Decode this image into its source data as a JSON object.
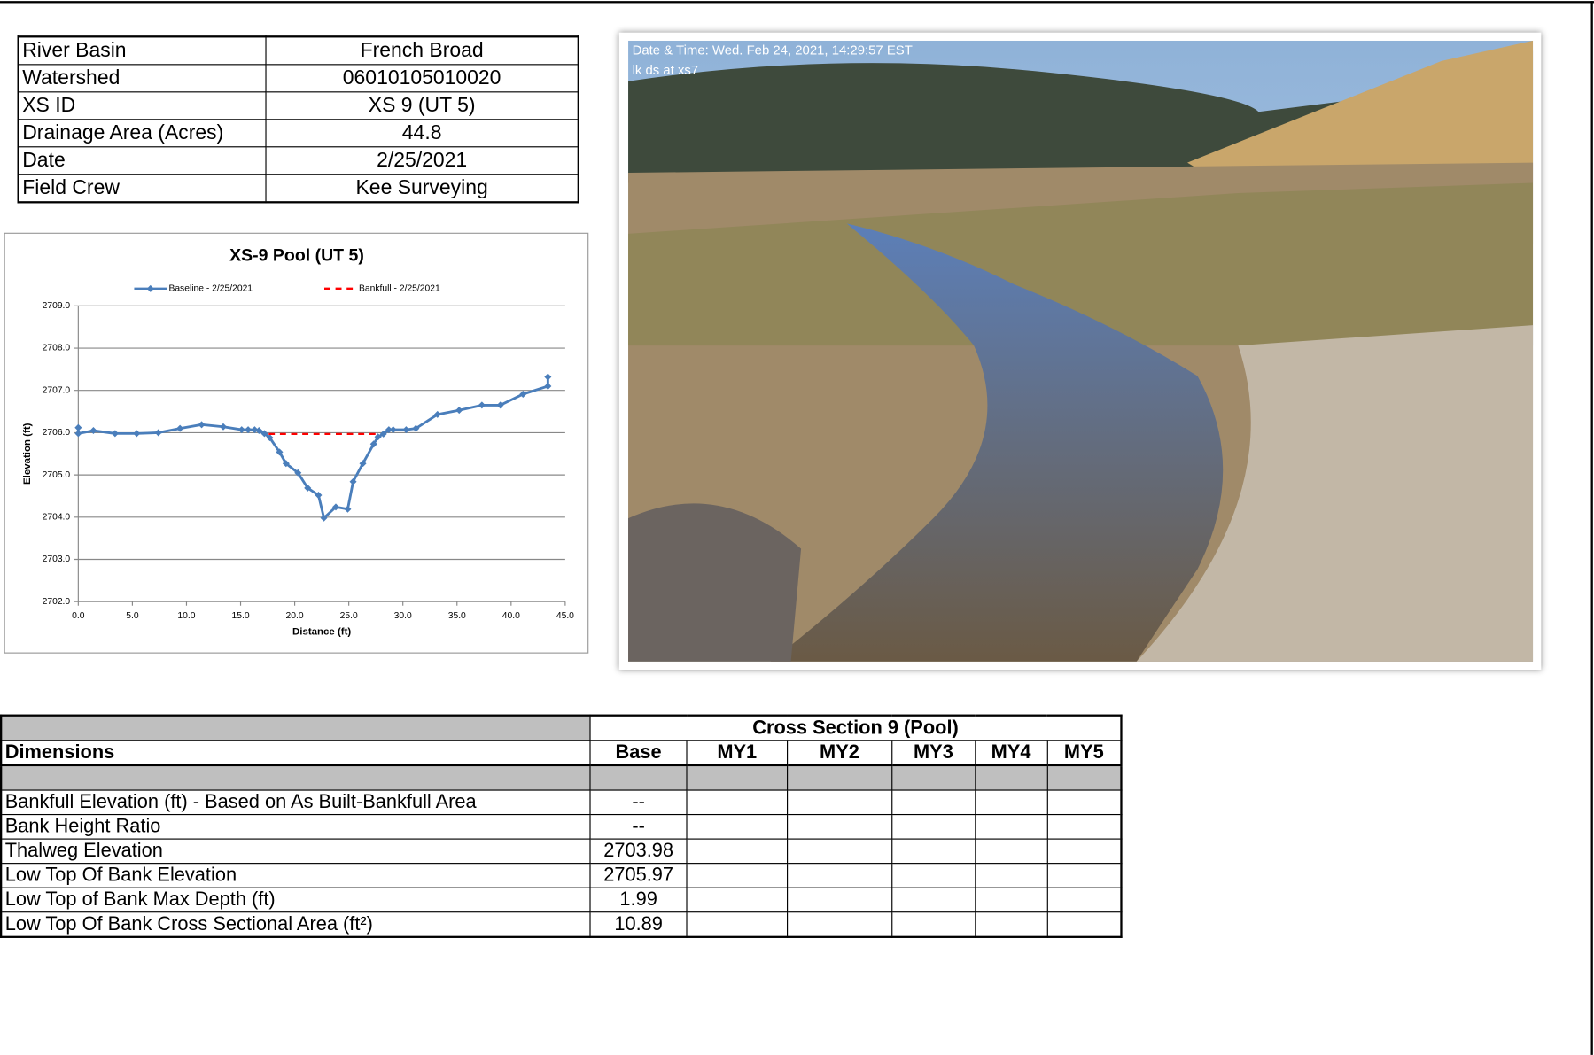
{
  "info_table": {
    "rows": [
      [
        "River Basin",
        "French Broad"
      ],
      [
        "Watershed",
        "06010105010020"
      ],
      [
        "XS ID",
        "XS 9 (UT 5)"
      ],
      [
        "Drainage Area (Acres)",
        44.8
      ],
      [
        "Date",
        "2/25/2021"
      ],
      [
        "Field Crew",
        "Kee Surveying"
      ]
    ]
  },
  "chart_data": {
    "type": "line",
    "title": "XS-9 Pool (UT 5)",
    "x_label": "Distance (ft)",
    "y_label": "Elevation (ft)",
    "series": [
      {
        "name": "Baseline - 2/25/2021",
        "color": "#4a7ebb",
        "marker": "diamond",
        "x": [
          0,
          0,
          1.4,
          3.4,
          5.4,
          7.4,
          9.4,
          11.4,
          13.4,
          15.1,
          15.7,
          16.3,
          16.7,
          17.2,
          17.7,
          18.6,
          19.2,
          20.3,
          21.2,
          22.2,
          22.7,
          23.8,
          24.9,
          25.4,
          26.3,
          27.3,
          27.7,
          28.2,
          28.7,
          29.1,
          30.3,
          31.2,
          33.2,
          35.2,
          37.3,
          39.0,
          41.1,
          43.4,
          43.4
        ],
        "values": [
          2706.12,
          2705.98,
          2706.05,
          2705.98,
          2705.98,
          2706.0,
          2706.1,
          2706.19,
          2706.14,
          2706.07,
          2706.07,
          2706.07,
          2706.05,
          2705.98,
          2705.88,
          2705.54,
          2705.27,
          2705.05,
          2704.69,
          2704.52,
          2703.98,
          2704.24,
          2704.19,
          2704.84,
          2705.27,
          2705.73,
          2705.9,
          2705.97,
          2706.07,
          2706.07,
          2706.07,
          2706.1,
          2706.43,
          2706.53,
          2706.65,
          2706.65,
          2706.91,
          2707.1,
          2707.32
        ]
      },
      {
        "name": "Bankfull - 2/25/2021",
        "color": "#ff0000",
        "dash": true,
        "x": [
          17.6,
          27.9
        ],
        "values": [
          2705.97,
          2705.97
        ]
      }
    ],
    "xlim": [
      0,
      45
    ],
    "xticks": [
      {
        "value": 0,
        "label": "0.0"
      },
      {
        "value": 5,
        "label": "5.0"
      },
      {
        "value": 10,
        "label": "10.0"
      },
      {
        "value": 15,
        "label": "15.0"
      },
      {
        "value": 20,
        "label": "20.0"
      },
      {
        "value": 25,
        "label": "25.0"
      },
      {
        "value": 30,
        "label": "30.0"
      },
      {
        "value": 35,
        "label": "35.0"
      },
      {
        "value": 40,
        "label": "40.0"
      },
      {
        "value": 45,
        "label": "45.0"
      }
    ],
    "ylim": [
      2702,
      2709
    ],
    "yticks": [
      {
        "value": 2702,
        "label": "2702.0"
      },
      {
        "value": 2703,
        "label": "2703.0"
      },
      {
        "value": 2704,
        "label": "2704.0"
      },
      {
        "value": 2705,
        "label": "2705.0"
      },
      {
        "value": 2706,
        "label": "2706.0"
      },
      {
        "value": 2707,
        "label": "2707.0"
      },
      {
        "value": 2708,
        "label": "2708.0"
      },
      {
        "value": 2709,
        "label": "2709.0"
      }
    ],
    "grid": true,
    "legend": "top"
  },
  "photo": {
    "caption_line1": "Date & Time: Wed. Feb 24, 2021, 14:29:57 EST",
    "caption_line2": "lk ds at xs7"
  },
  "dimensions_table": {
    "group_header": "Cross Section 9 (Pool)",
    "columns": [
      "Dimensions",
      "Base",
      "MY1",
      "MY2",
      "MY3",
      "MY4",
      "MY5"
    ],
    "rows": [
      [
        "Bankfull Elevation (ft) - Based on As Built-Bankfull Area",
        "--"
      ],
      [
        "Bank Height Ratio",
        "--"
      ],
      [
        "Thalweg Elevation",
        2703.98
      ],
      [
        "Low Top Of Bank Elevation",
        2705.97
      ],
      [
        "Low Top of Bank Max Depth (ft)",
        1.99
      ],
      [
        "Low Top Of Bank Cross Sectional Area (ft²)",
        10.89
      ]
    ]
  }
}
